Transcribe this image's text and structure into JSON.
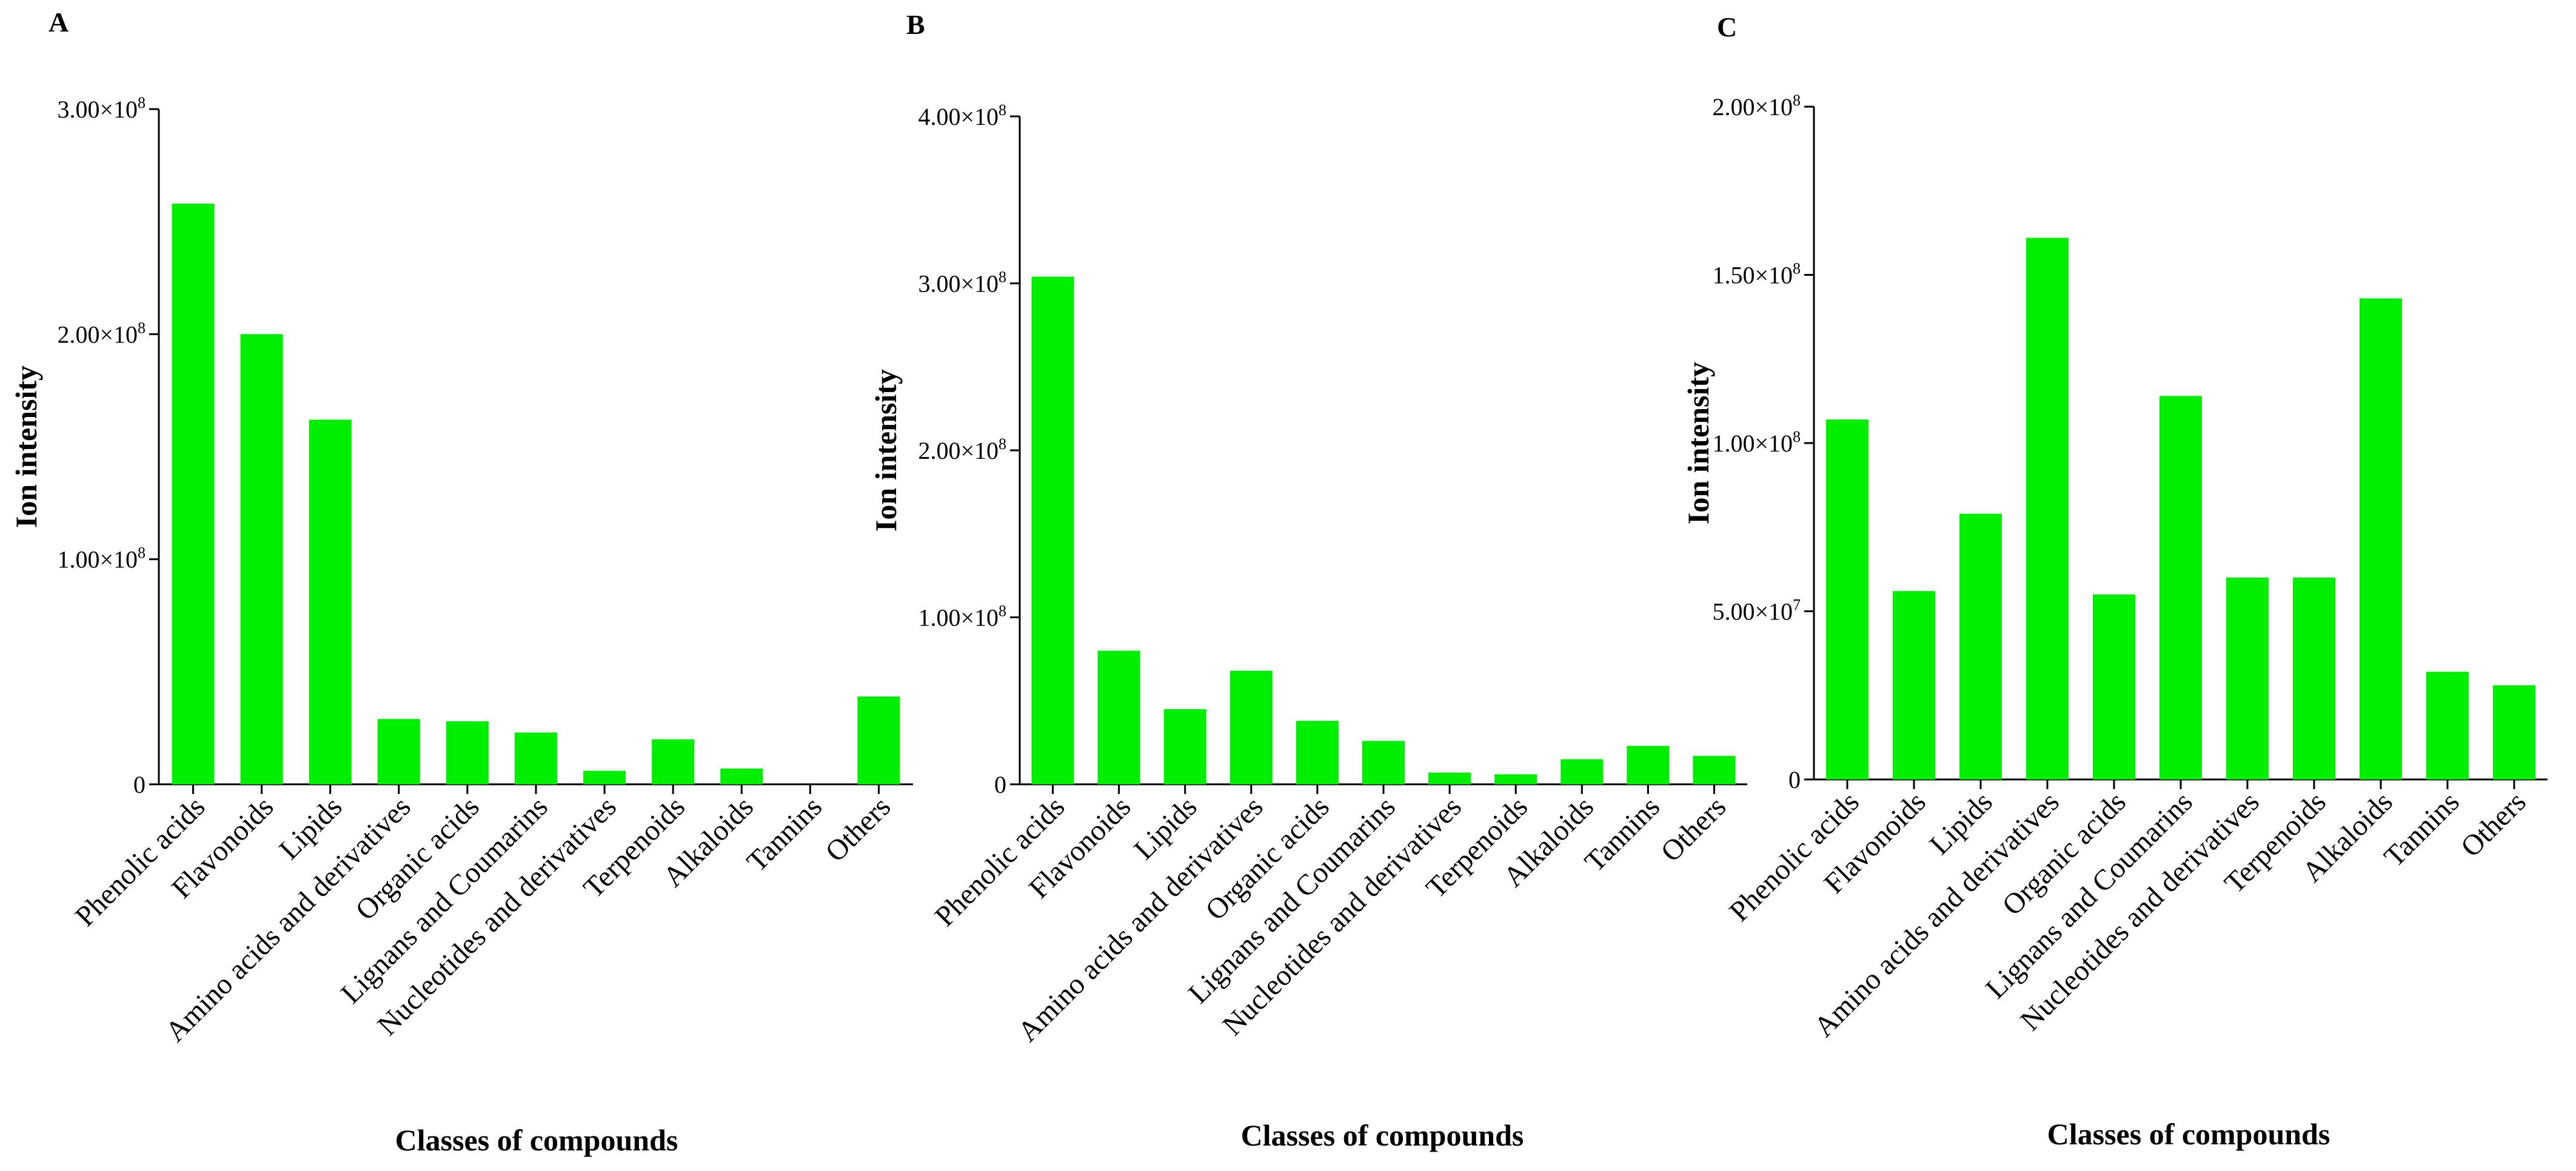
{
  "chart_data": [
    {
      "type": "bar",
      "panel": "A",
      "ylabel": "Ion intensity",
      "xlabel": "Classes of compounds",
      "ylim": [
        0,
        300000000
      ],
      "yticks": [
        {
          "value": 0,
          "label": "0",
          "exp": ""
        },
        {
          "value": 100000000,
          "label": "1.00×10",
          "exp": "8"
        },
        {
          "value": 200000000,
          "label": "2.00×10",
          "exp": "8"
        },
        {
          "value": 300000000,
          "label": "3.00×10",
          "exp": "8"
        }
      ],
      "categories": [
        "Phenolic acids",
        "Flavonoids",
        "Lipids",
        "Amino acids and derivatives",
        "Organic acids",
        "Lignans and Coumarins",
        "Nucleotides and derivatives",
        "Terpenoids",
        "Alkaloids",
        "Tannins",
        "Others"
      ],
      "values": [
        258000000,
        200000000,
        162000000,
        29000000,
        28000000,
        23000000,
        6000000,
        20000000,
        7000000,
        0,
        39000000
      ],
      "color": "#00ee00"
    },
    {
      "type": "bar",
      "panel": "B",
      "ylabel": "Ion intensity",
      "xlabel": "Classes of compounds",
      "ylim": [
        0,
        400000000
      ],
      "yticks": [
        {
          "value": 0,
          "label": "0",
          "exp": ""
        },
        {
          "value": 100000000,
          "label": "1.00×10",
          "exp": "8"
        },
        {
          "value": 200000000,
          "label": "2.00×10",
          "exp": "8"
        },
        {
          "value": 300000000,
          "label": "3.00×10",
          "exp": "8"
        },
        {
          "value": 400000000,
          "label": "4.00×10",
          "exp": "8"
        }
      ],
      "categories": [
        "Phenolic acids",
        "Flavonoids",
        "Lipids",
        "Amino acids and derivatives",
        "Organic acids",
        "Lignans and Coumarins",
        "Nucleotides and derivatives",
        "Terpenoids",
        "Alkaloids",
        "Tannins",
        "Others"
      ],
      "values": [
        304000000,
        80000000,
        45000000,
        68000000,
        38000000,
        26000000,
        7000000,
        6000000,
        15000000,
        23000000,
        17000000
      ],
      "color": "#00ee00"
    },
    {
      "type": "bar",
      "panel": "C",
      "ylabel": "Ion intensity",
      "xlabel": "Classes of compounds",
      "ylim": [
        0,
        200000000
      ],
      "yticks": [
        {
          "value": 0,
          "label": "0",
          "exp": ""
        },
        {
          "value": 50000000,
          "label": "5.00×10",
          "exp": "7"
        },
        {
          "value": 100000000,
          "label": "1.00×10",
          "exp": "8"
        },
        {
          "value": 150000000,
          "label": "1.50×10",
          "exp": "8"
        },
        {
          "value": 200000000,
          "label": "2.00×10",
          "exp": "8"
        }
      ],
      "categories": [
        "Phenolic acids",
        "Flavonoids",
        "Lipids",
        "Amino acids and derivatives",
        "Organic acids",
        "Lignans and Coumarins",
        "Nucleotides and derivatives",
        "Terpenoids",
        "Alkaloids",
        "Tannins",
        "Others"
      ],
      "values": [
        107000000,
        56000000,
        79000000,
        161000000,
        55000000,
        114000000,
        60000000,
        60000000,
        143000000,
        32000000,
        28000000
      ],
      "color": "#00ee00"
    }
  ]
}
